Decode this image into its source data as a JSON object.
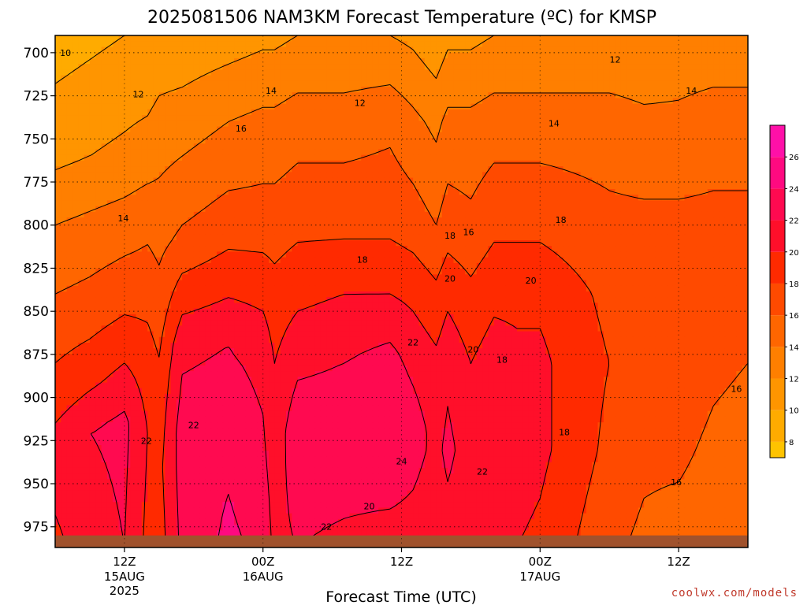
{
  "chart_data": {
    "type": "heatmap",
    "title": "2025081506 NAM3KM Forecast Temperature (ºC) for KMSP",
    "xlabel": "Forecast Time (UTC)",
    "ylabel": "",
    "x_range_hours_from_init": [
      0,
      60
    ],
    "y_range_hpa": [
      690,
      987
    ],
    "y_ticks": [
      700,
      725,
      750,
      775,
      800,
      825,
      850,
      875,
      900,
      925,
      950,
      975
    ],
    "y_tick_labels": [
      "700",
      "725",
      "750",
      "775",
      "800",
      "825",
      "850",
      "875",
      "900",
      "925",
      "950",
      "975"
    ],
    "x_ticks": [
      {
        "hour": 6,
        "label": "12Z",
        "date": "15AUG",
        "year": "2025"
      },
      {
        "hour": 18,
        "label": "00Z",
        "date": "16AUG",
        "year": ""
      },
      {
        "hour": 30,
        "label": "12Z",
        "date": "",
        "year": ""
      },
      {
        "hour": 42,
        "label": "00Z",
        "date": "17AUG",
        "year": ""
      },
      {
        "hour": 54,
        "label": "12Z",
        "date": "",
        "year": ""
      }
    ],
    "colorbar": {
      "levels": [
        8,
        10,
        12,
        14,
        16,
        18,
        20,
        22,
        24,
        26
      ],
      "labels": [
        "8",
        "10",
        "12",
        "14",
        "16",
        "18",
        "20",
        "22",
        "24",
        "26"
      ],
      "range": [
        7,
        28
      ],
      "colors": [
        "#ffc300",
        "#ffab00",
        "#ff9500",
        "#ff7f00",
        "#ff6600",
        "#ff4a00",
        "#ff2a00",
        "#ff0f2a",
        "#ff0a50",
        "#ff0a80",
        "#ff10a8"
      ]
    },
    "columns": [
      {
        "hour": 0,
        "profile": [
          [
            690,
            9
          ],
          [
            760,
            11.5
          ],
          [
            800,
            14
          ],
          [
            850,
            16.5
          ],
          [
            900,
            19
          ],
          [
            930,
            21
          ],
          [
            987,
            19.5
          ]
        ]
      },
      {
        "hour": 3,
        "profile": [
          [
            690,
            9.5
          ],
          [
            760,
            12
          ],
          [
            800,
            14.5
          ],
          [
            850,
            17
          ],
          [
            890,
            19.5
          ],
          [
            920,
            22
          ],
          [
            987,
            21
          ]
        ]
      },
      {
        "hour": 6,
        "profile": [
          [
            690,
            10
          ],
          [
            760,
            12.5
          ],
          [
            800,
            15
          ],
          [
            845,
            17.5
          ],
          [
            880,
            20
          ],
          [
            915,
            22.5
          ],
          [
            987,
            22
          ]
        ]
      },
      {
        "hour": 8,
        "profile": [
          [
            690,
            10
          ],
          [
            760,
            13
          ],
          [
            800,
            15.5
          ],
          [
            845,
            17.5
          ],
          [
            880,
            19
          ],
          [
            920,
            20
          ],
          [
            987,
            19.5
          ]
        ]
      },
      {
        "hour": 9,
        "profile": [
          [
            690,
            10.5
          ],
          [
            760,
            13.5
          ],
          [
            810,
            15.5
          ],
          [
            850,
            17
          ],
          [
            890,
            18.5
          ],
          [
            940,
            19.5
          ],
          [
            987,
            19
          ]
        ]
      },
      {
        "hour": 11,
        "profile": [
          [
            690,
            10.5
          ],
          [
            760,
            14
          ],
          [
            810,
            16.5
          ],
          [
            840,
            19
          ],
          [
            870,
            21.5
          ],
          [
            920,
            23
          ],
          [
            987,
            22.5
          ]
        ]
      },
      {
        "hour": 15,
        "profile": [
          [
            690,
            11
          ],
          [
            740,
            14
          ],
          [
            800,
            17
          ],
          [
            835,
            19.5
          ],
          [
            870,
            22
          ],
          [
            925,
            23.5
          ],
          [
            987,
            24.5
          ]
        ]
      },
      {
        "hour": 18,
        "profile": [
          [
            690,
            11.5
          ],
          [
            740,
            14.5
          ],
          [
            800,
            17
          ],
          [
            840,
            19.5
          ],
          [
            880,
            21.5
          ],
          [
            940,
            22.5
          ],
          [
            987,
            23.5
          ]
        ]
      },
      {
        "hour": 19,
        "profile": [
          [
            690,
            11.5
          ],
          [
            740,
            14.5
          ],
          [
            800,
            17
          ],
          [
            845,
            19
          ],
          [
            880,
            20
          ],
          [
            940,
            21
          ],
          [
            987,
            21.5
          ]
        ]
      },
      {
        "hour": 21,
        "profile": [
          [
            690,
            12
          ],
          [
            740,
            15
          ],
          [
            800,
            17.5
          ],
          [
            840,
            19.5
          ],
          [
            880,
            21.5
          ],
          [
            920,
            23.5
          ],
          [
            987,
            22
          ]
        ]
      },
      {
        "hour": 25,
        "profile": [
          [
            690,
            12
          ],
          [
            740,
            15
          ],
          [
            800,
            17.5
          ],
          [
            840,
            20
          ],
          [
            880,
            22
          ],
          [
            920,
            23.5
          ],
          [
            987,
            21.5
          ]
        ]
      },
      {
        "hour": 29,
        "profile": [
          [
            690,
            12
          ],
          [
            740,
            15.5
          ],
          [
            800,
            17.5
          ],
          [
            840,
            20
          ],
          [
            875,
            22.5
          ],
          [
            920,
            24
          ],
          [
            987,
            21
          ]
        ]
      },
      {
        "hour": 31,
        "profile": [
          [
            690,
            11.5
          ],
          [
            740,
            14.5
          ],
          [
            800,
            17
          ],
          [
            840,
            19.5
          ],
          [
            880,
            21.5
          ],
          [
            920,
            23
          ],
          [
            987,
            21
          ]
        ]
      },
      {
        "hour": 33,
        "profile": [
          [
            690,
            10.5
          ],
          [
            740,
            13.5
          ],
          [
            800,
            16
          ],
          [
            840,
            18.5
          ],
          [
            880,
            20.5
          ],
          [
            930,
            21.5
          ],
          [
            987,
            20.5
          ]
        ]
      },
      {
        "hour": 34,
        "profile": [
          [
            690,
            11.5
          ],
          [
            740,
            14.5
          ],
          [
            800,
            17
          ],
          [
            840,
            19.5
          ],
          [
            880,
            21.5
          ],
          [
            930,
            22.5
          ],
          [
            987,
            21
          ]
        ]
      },
      {
        "hour": 36,
        "profile": [
          [
            690,
            11.5
          ],
          [
            740,
            14.5
          ],
          [
            800,
            16.5
          ],
          [
            840,
            18.5
          ],
          [
            880,
            20
          ],
          [
            930,
            21
          ],
          [
            987,
            20.5
          ]
        ]
      },
      {
        "hour": 38,
        "profile": [
          [
            690,
            12
          ],
          [
            740,
            15
          ],
          [
            800,
            17.5
          ],
          [
            840,
            19.5
          ],
          [
            880,
            21
          ],
          [
            930,
            22
          ],
          [
            987,
            20.5
          ]
        ]
      },
      {
        "hour": 40,
        "profile": [
          [
            690,
            12
          ],
          [
            740,
            15
          ],
          [
            800,
            17.5
          ],
          [
            840,
            19.5
          ],
          [
            880,
            20.5
          ],
          [
            930,
            21
          ],
          [
            987,
            20
          ]
        ]
      },
      {
        "hour": 42,
        "profile": [
          [
            690,
            12
          ],
          [
            740,
            15
          ],
          [
            800,
            17.5
          ],
          [
            840,
            19.5
          ],
          [
            880,
            20.5
          ],
          [
            930,
            20.5
          ],
          [
            987,
            19.5
          ]
        ]
      },
      {
        "hour": 45,
        "profile": [
          [
            690,
            12
          ],
          [
            740,
            15
          ],
          [
            800,
            17
          ],
          [
            840,
            18.5
          ],
          [
            880,
            19
          ],
          [
            930,
            19
          ],
          [
            987,
            18
          ]
        ]
      },
      {
        "hour": 48,
        "profile": [
          [
            690,
            12
          ],
          [
            740,
            15
          ],
          [
            800,
            16.5
          ],
          [
            840,
            17.5
          ],
          [
            880,
            18
          ],
          [
            930,
            17.5
          ],
          [
            987,
            16.5
          ]
        ]
      },
      {
        "hour": 51,
        "profile": [
          [
            690,
            12
          ],
          [
            740,
            14.5
          ],
          [
            800,
            16.5
          ],
          [
            840,
            17.5
          ],
          [
            880,
            17.5
          ],
          [
            930,
            16.5
          ],
          [
            987,
            15.5
          ]
        ]
      },
      {
        "hour": 54,
        "profile": [
          [
            690,
            12.5
          ],
          [
            740,
            14.5
          ],
          [
            800,
            16.5
          ],
          [
            840,
            17.5
          ],
          [
            880,
            17.5
          ],
          [
            930,
            16.5
          ],
          [
            987,
            15
          ]
        ]
      },
      {
        "hour": 57,
        "profile": [
          [
            690,
            12.5
          ],
          [
            740,
            15
          ],
          [
            800,
            16.5
          ],
          [
            840,
            17
          ],
          [
            880,
            16.5
          ],
          [
            930,
            15.5
          ],
          [
            987,
            14.5
          ]
        ]
      },
      {
        "hour": 60,
        "profile": [
          [
            690,
            12.5
          ],
          [
            740,
            15
          ],
          [
            800,
            16.5
          ],
          [
            840,
            17
          ],
          [
            880,
            16
          ],
          [
            930,
            15
          ],
          [
            987,
            14.5
          ]
        ]
      }
    ],
    "contour_labels": [
      {
        "hour": 0.9,
        "pres": 700,
        "text": "10"
      },
      {
        "hour": 7.2,
        "pres": 724,
        "text": "12"
      },
      {
        "hour": 26.4,
        "pres": 729,
        "text": "12"
      },
      {
        "hour": 48.5,
        "pres": 704,
        "text": "12"
      },
      {
        "hour": 18.7,
        "pres": 722,
        "text": "14"
      },
      {
        "hour": 43.2,
        "pres": 741,
        "text": "14"
      },
      {
        "hour": 55.1,
        "pres": 722,
        "text": "14"
      },
      {
        "hour": 5.9,
        "pres": 796,
        "text": "14"
      },
      {
        "hour": 16.1,
        "pres": 744,
        "text": "16"
      },
      {
        "hour": 35.8,
        "pres": 804,
        "text": "16"
      },
      {
        "hour": 59.0,
        "pres": 895,
        "text": "16"
      },
      {
        "hour": 53.8,
        "pres": 949,
        "text": "16"
      },
      {
        "hour": 34.2,
        "pres": 806,
        "text": "18"
      },
      {
        "hour": 26.6,
        "pres": 820,
        "text": "18"
      },
      {
        "hour": 43.8,
        "pres": 797,
        "text": "18"
      },
      {
        "hour": 38.7,
        "pres": 878,
        "text": "18"
      },
      {
        "hour": 44.1,
        "pres": 920,
        "text": "18"
      },
      {
        "hour": 34.2,
        "pres": 831,
        "text": "20"
      },
      {
        "hour": 41.2,
        "pres": 832,
        "text": "20"
      },
      {
        "hour": 36.2,
        "pres": 872,
        "text": "20"
      },
      {
        "hour": 27.2,
        "pres": 963,
        "text": "20"
      },
      {
        "hour": 31.0,
        "pres": 868,
        "text": "22"
      },
      {
        "hour": 12.0,
        "pres": 916,
        "text": "22"
      },
      {
        "hour": 7.9,
        "pres": 925,
        "text": "22"
      },
      {
        "hour": 23.5,
        "pres": 975,
        "text": "22"
      },
      {
        "hour": 37.0,
        "pres": 943,
        "text": "22"
      },
      {
        "hour": 30.0,
        "pres": 937,
        "text": "24"
      }
    ],
    "terrain": {
      "pressure_hpa": 980,
      "color": "#a0522d"
    },
    "credit": "coolwx.com/models"
  }
}
